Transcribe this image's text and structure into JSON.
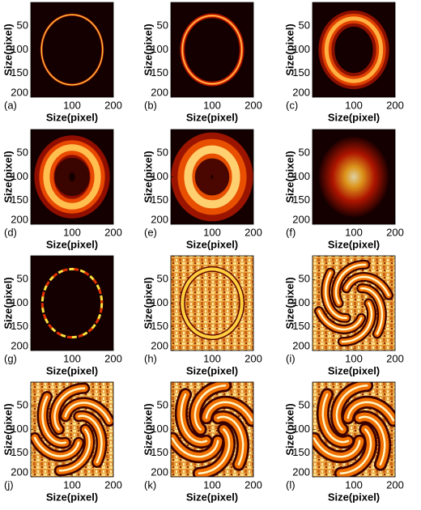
{
  "chart_data": [
    {
      "type": "image",
      "panel_label": "(a)",
      "xlabel": "Size(pixel)",
      "ylabel": "Size(pixel)",
      "xlim": [
        0,
        200
      ],
      "ylim": [
        200,
        0
      ],
      "xticks": [
        100,
        200
      ],
      "yticks": [
        50,
        100,
        150,
        200
      ]
    },
    {
      "type": "image",
      "panel_label": "(b)",
      "xlabel": "Size(pixel)",
      "ylabel": "Size(pixel)",
      "xlim": [
        0,
        200
      ],
      "ylim": [
        200,
        0
      ],
      "xticks": [
        100,
        200
      ],
      "yticks": [
        50,
        100,
        150,
        200
      ]
    },
    {
      "type": "image",
      "panel_label": "(c)",
      "xlabel": "Size(pixel)",
      "ylabel": "Size(pixel)",
      "xlim": [
        0,
        200
      ],
      "ylim": [
        200,
        0
      ],
      "xticks": [
        100,
        200
      ],
      "yticks": [
        50,
        100,
        150,
        200
      ]
    },
    {
      "type": "image",
      "panel_label": "(d)",
      "xlabel": "Size(pixel)",
      "ylabel": "Size(pixel)",
      "xlim": [
        0,
        200
      ],
      "ylim": [
        200,
        0
      ],
      "xticks": [
        100,
        200
      ],
      "yticks": [
        50,
        100,
        150,
        200
      ]
    },
    {
      "type": "image",
      "panel_label": "(e)",
      "xlabel": "Size(pixel)",
      "ylabel": "Size(pixel)",
      "xlim": [
        0,
        200
      ],
      "ylim": [
        200,
        0
      ],
      "xticks": [
        100,
        200
      ],
      "yticks": [
        50,
        100,
        150,
        200
      ]
    },
    {
      "type": "image",
      "panel_label": "(f)",
      "xlabel": "Size(pixel)",
      "ylabel": "Size(pixel)",
      "xlim": [
        0,
        200
      ],
      "ylim": [
        200,
        0
      ],
      "xticks": [
        100,
        200
      ],
      "yticks": [
        50,
        100,
        150,
        200
      ]
    },
    {
      "type": "image",
      "panel_label": "(g)",
      "xlabel": "Size(pixel)",
      "ylabel": "Size(pixel)",
      "xlim": [
        0,
        200
      ],
      "ylim": [
        200,
        0
      ],
      "xticks": [
        100,
        200
      ],
      "yticks": [
        50,
        100,
        150,
        200
      ]
    },
    {
      "type": "image",
      "panel_label": "(h)",
      "xlabel": "Size(pixel)",
      "ylabel": "Size(pixel)",
      "xlim": [
        0,
        200
      ],
      "ylim": [
        200,
        0
      ],
      "xticks": [
        100,
        200
      ],
      "yticks": [
        50,
        100,
        150,
        200
      ]
    },
    {
      "type": "image",
      "panel_label": "(i)",
      "xlabel": "Size(pixel)",
      "ylabel": "Size(pixel)",
      "xlim": [
        0,
        200
      ],
      "ylim": [
        200,
        0
      ],
      "xticks": [
        100,
        200
      ],
      "yticks": [
        50,
        100,
        150,
        200
      ]
    },
    {
      "type": "image",
      "panel_label": "(j)",
      "xlabel": "Size(pixel)",
      "ylabel": "Size(pixel)",
      "xlim": [
        0,
        200
      ],
      "ylim": [
        200,
        0
      ],
      "xticks": [
        100,
        200
      ],
      "yticks": [
        50,
        100,
        150,
        200
      ]
    },
    {
      "type": "image",
      "panel_label": "(k)",
      "xlabel": "Size(pixel)",
      "ylabel": "Size(pixel)",
      "xlim": [
        0,
        200
      ],
      "ylim": [
        200,
        0
      ],
      "xticks": [
        100,
        200
      ],
      "yticks": [
        50,
        100,
        150,
        200
      ]
    },
    {
      "type": "image",
      "panel_label": "(l)",
      "xlabel": "Size(pixel)",
      "ylabel": "Size(pixel)",
      "xlim": [
        0,
        200
      ],
      "ylim": [
        200,
        0
      ],
      "xticks": [
        100,
        200
      ],
      "yticks": [
        50,
        100,
        150,
        200
      ]
    }
  ]
}
